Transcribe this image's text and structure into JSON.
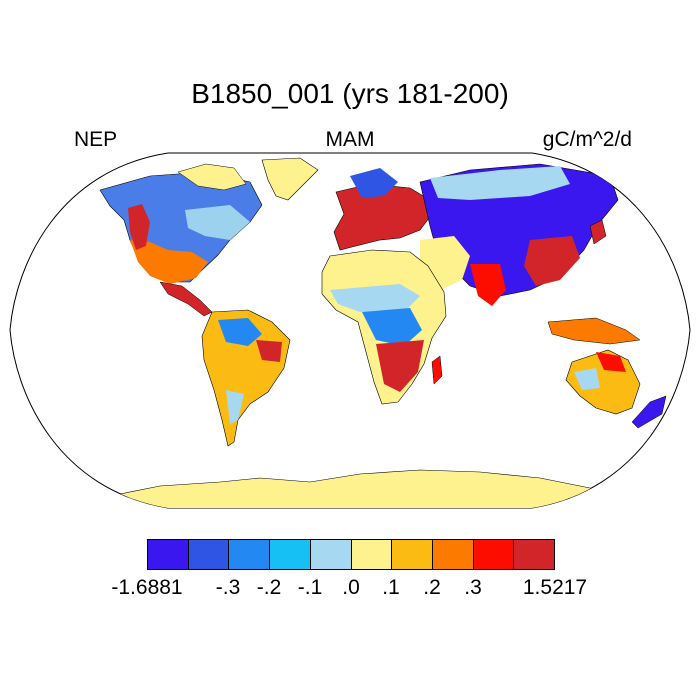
{
  "title": "B1850_001 (yrs 181-200)",
  "left_label": "NEP",
  "center_label": "MAM",
  "right_label": "gC/m^2/d",
  "colors": {
    "ocean": "#ffffff",
    "land_neutral": "#fdf28e",
    "coast": "#000000"
  },
  "colorbar": {
    "colors": [
      "#3a17ee",
      "#2f55e4",
      "#2388f2",
      "#16c0f5",
      "#a6d8f1",
      "#fdf28e",
      "#fbbb12",
      "#fd7a00",
      "#fd0c00",
      "#d2252a"
    ],
    "labels": [
      "-1.6881",
      "-.3",
      "-.2",
      "-.1",
      ".0",
      ".1",
      ".2",
      ".3",
      "1.5217"
    ]
  }
}
